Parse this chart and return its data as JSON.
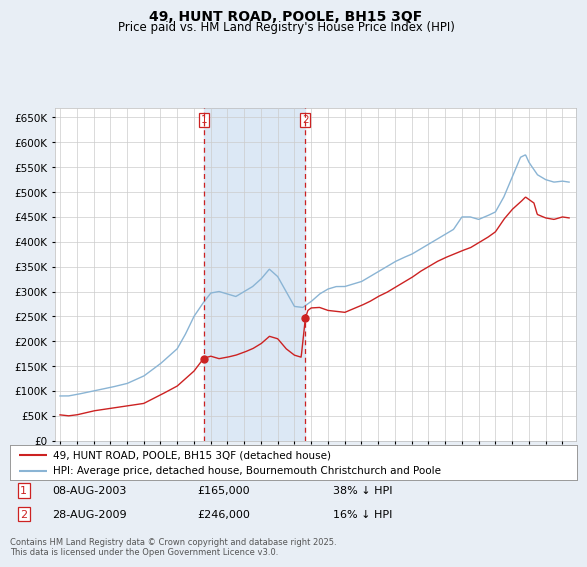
{
  "title": "49, HUNT ROAD, POOLE, BH15 3QF",
  "subtitle": "Price paid vs. HM Land Registry's House Price Index (HPI)",
  "legend_line1": "49, HUNT ROAD, POOLE, BH15 3QF (detached house)",
  "legend_line2": "HPI: Average price, detached house, Bournemouth Christchurch and Poole",
  "footnote": "Contains HM Land Registry data © Crown copyright and database right 2025.\nThis data is licensed under the Open Government Licence v3.0.",
  "purchase1_date": "08-AUG-2003",
  "purchase1_price": 165000,
  "purchase1_label": "38% ↓ HPI",
  "purchase2_date": "28-AUG-2009",
  "purchase2_price": 246000,
  "purchase2_label": "16% ↓ HPI",
  "hpi_color": "#8ab4d4",
  "price_color": "#cc2222",
  "marker_color": "#cc2222",
  "vline_color": "#cc2222",
  "shade_color": "#dce8f5",
  "background_color": "#e8eef5",
  "plot_bg_color": "#ffffff",
  "ylim": [
    0,
    670000
  ],
  "yticks": [
    0,
    50000,
    100000,
    150000,
    200000,
    250000,
    300000,
    350000,
    400000,
    450000,
    500000,
    550000,
    600000,
    650000
  ],
  "purchase1_year": 2003.6,
  "purchase2_year": 2009.65
}
